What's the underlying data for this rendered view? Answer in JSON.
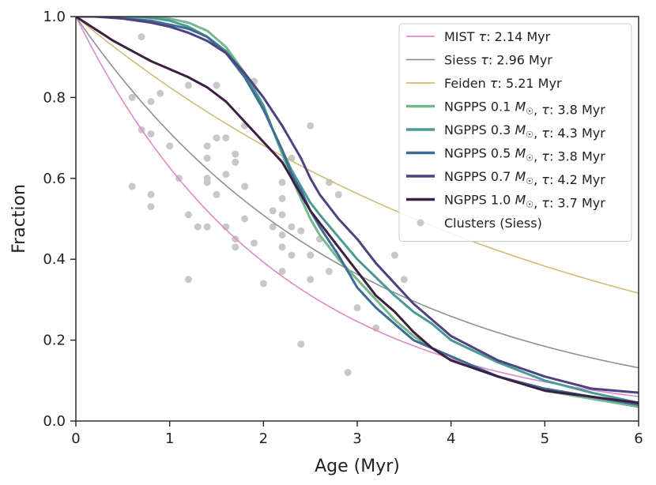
{
  "chart_data": {
    "type": "line",
    "title": "",
    "xlabel": "Age (Myr)",
    "ylabel": "Fraction",
    "xlim": [
      0,
      6
    ],
    "ylim": [
      0,
      1.0
    ],
    "xticks": [
      0,
      1,
      2,
      3,
      4,
      5,
      6
    ],
    "xtick_labels": [
      "0",
      "1",
      "2",
      "3",
      "4",
      "5",
      "6"
    ],
    "yticks": [
      0.0,
      0.2,
      0.4,
      0.6,
      0.8,
      1.0
    ],
    "ytick_labels": [
      "0.0",
      "0.2",
      "0.4",
      "0.6",
      "0.8",
      "1.0"
    ],
    "grid": false,
    "legend_position": "top-right",
    "series": [
      {
        "name": "MIST τ: 2.14 Myr",
        "kind": "exponential",
        "tau": 2.14,
        "color": "#dd8acd",
        "width": 1.6,
        "legend_parts": [
          {
            "text": "MIST "
          },
          {
            "text": "τ",
            "italic": true
          },
          {
            "text": ": 2.14 Myr"
          }
        ]
      },
      {
        "name": "Siess τ: 2.96 Myr",
        "kind": "exponential",
        "tau": 2.96,
        "color": "#909090",
        "width": 1.6,
        "legend_parts": [
          {
            "text": "Siess "
          },
          {
            "text": "τ",
            "italic": true
          },
          {
            "text": ": 2.96 Myr"
          }
        ]
      },
      {
        "name": "Feiden τ: 5.21 Myr",
        "kind": "exponential",
        "tau": 5.21,
        "color": "#d1bc76",
        "width": 1.6,
        "legend_parts": [
          {
            "text": "Feiden "
          },
          {
            "text": "τ",
            "italic": true
          },
          {
            "text": ": 5.21 Myr"
          }
        ]
      },
      {
        "name": "NGPPS 0.1 M☉, τ: 3.8 Myr",
        "kind": "simulated",
        "color": "#74b88e",
        "width": 3,
        "legend_parts": [
          {
            "text": "NGPPS 0.1 "
          },
          {
            "text": "M",
            "italic": true
          },
          {
            "text": "☉",
            "sub": true
          },
          {
            "text": ", "
          },
          {
            "text": "τ",
            "italic": true
          },
          {
            "text": ": 3.8 Myr"
          }
        ],
        "x": [
          0,
          0.5,
          0.8,
          1.0,
          1.2,
          1.4,
          1.6,
          1.8,
          2.0,
          2.1,
          2.2,
          2.3,
          2.4,
          2.5,
          2.6,
          2.8,
          3.0,
          3.2,
          3.4,
          3.6,
          3.8,
          4.0,
          4.5,
          5.0,
          5.5,
          6.0
        ],
        "y": [
          1.0,
          1.0,
          1.0,
          0.995,
          0.985,
          0.965,
          0.925,
          0.86,
          0.78,
          0.72,
          0.66,
          0.6,
          0.55,
          0.5,
          0.46,
          0.4,
          0.35,
          0.3,
          0.25,
          0.21,
          0.18,
          0.15,
          0.11,
          0.075,
          0.055,
          0.035
        ]
      },
      {
        "name": "NGPPS 0.3 M☉, τ: 4.3 Myr",
        "kind": "simulated",
        "color": "#4c9a94",
        "width": 3,
        "legend_parts": [
          {
            "text": "NGPPS 0.3 "
          },
          {
            "text": "M",
            "italic": true
          },
          {
            "text": "☉",
            "sub": true
          },
          {
            "text": ", "
          },
          {
            "text": "τ",
            "italic": true
          },
          {
            "text": ": 4.3 Myr"
          }
        ],
        "x": [
          0,
          0.5,
          0.8,
          1.0,
          1.2,
          1.4,
          1.6,
          1.8,
          2.0,
          2.1,
          2.2,
          2.3,
          2.4,
          2.5,
          2.6,
          2.8,
          3.0,
          3.2,
          3.4,
          3.6,
          3.8,
          4.0,
          4.5,
          5.0,
          5.5,
          6.0
        ],
        "y": [
          1.0,
          1.0,
          0.997,
          0.99,
          0.975,
          0.95,
          0.915,
          0.86,
          0.78,
          0.72,
          0.67,
          0.62,
          0.58,
          0.54,
          0.51,
          0.455,
          0.4,
          0.355,
          0.31,
          0.27,
          0.24,
          0.2,
          0.145,
          0.1,
          0.07,
          0.045
        ]
      },
      {
        "name": "NGPPS 0.5 M☉, τ: 3.8 Myr",
        "kind": "simulated",
        "color": "#3f6c94",
        "width": 3,
        "legend_parts": [
          {
            "text": "NGPPS 0.5 "
          },
          {
            "text": "M",
            "italic": true
          },
          {
            "text": "☉",
            "sub": true
          },
          {
            "text": ", "
          },
          {
            "text": "τ",
            "italic": true
          },
          {
            "text": ": 3.8 Myr"
          }
        ],
        "x": [
          0,
          0.3,
          0.5,
          0.8,
          1.0,
          1.2,
          1.4,
          1.6,
          1.8,
          2.0,
          2.1,
          2.2,
          2.3,
          2.4,
          2.5,
          2.6,
          2.8,
          3.0,
          3.2,
          3.4,
          3.6,
          3.8,
          4.0,
          4.5,
          5.0,
          5.5,
          6.0
        ],
        "y": [
          1.0,
          1.0,
          0.995,
          0.99,
          0.98,
          0.97,
          0.95,
          0.91,
          0.85,
          0.77,
          0.72,
          0.67,
          0.61,
          0.57,
          0.52,
          0.48,
          0.41,
          0.33,
          0.28,
          0.24,
          0.2,
          0.18,
          0.16,
          0.11,
          0.08,
          0.06,
          0.04
        ]
      },
      {
        "name": "NGPPS 0.7 M☉, τ: 4.2 Myr",
        "kind": "simulated",
        "color": "#4b4480",
        "width": 3,
        "legend_parts": [
          {
            "text": "NGPPS 0.7 "
          },
          {
            "text": "M",
            "italic": true
          },
          {
            "text": "☉",
            "sub": true
          },
          {
            "text": ", "
          },
          {
            "text": "τ",
            "italic": true
          },
          {
            "text": ": 4.2 Myr"
          }
        ],
        "x": [
          0,
          0.2,
          0.5,
          0.8,
          1.0,
          1.2,
          1.4,
          1.6,
          1.8,
          2.0,
          2.2,
          2.3,
          2.4,
          2.5,
          2.6,
          2.8,
          3.0,
          3.2,
          3.4,
          3.6,
          3.8,
          4.0,
          4.5,
          5.0,
          5.5,
          6.0
        ],
        "y": [
          1.0,
          1.0,
          0.995,
          0.985,
          0.975,
          0.96,
          0.94,
          0.91,
          0.86,
          0.8,
          0.73,
          0.69,
          0.65,
          0.6,
          0.56,
          0.5,
          0.45,
          0.39,
          0.34,
          0.29,
          0.25,
          0.21,
          0.15,
          0.11,
          0.08,
          0.07
        ]
      },
      {
        "name": "NGPPS 1.0 M☉, τ: 3.7 Myr",
        "kind": "simulated",
        "color": "#3d1f44",
        "width": 3,
        "legend_parts": [
          {
            "text": "NGPPS 1.0 "
          },
          {
            "text": "M",
            "italic": true
          },
          {
            "text": "☉",
            "sub": true
          },
          {
            "text": ", "
          },
          {
            "text": "τ",
            "italic": true
          },
          {
            "text": ": 3.7 Myr"
          }
        ],
        "x": [
          0,
          0.2,
          0.4,
          0.6,
          0.8,
          1.0,
          1.2,
          1.4,
          1.6,
          1.8,
          2.0,
          2.2,
          2.3,
          2.4,
          2.5,
          2.6,
          2.8,
          3.0,
          3.2,
          3.4,
          3.6,
          3.8,
          4.0,
          4.5,
          5.0,
          5.5,
          6.0
        ],
        "y": [
          1.0,
          0.97,
          0.94,
          0.915,
          0.89,
          0.87,
          0.85,
          0.825,
          0.79,
          0.74,
          0.69,
          0.64,
          0.6,
          0.56,
          0.52,
          0.49,
          0.43,
          0.37,
          0.31,
          0.27,
          0.22,
          0.18,
          0.15,
          0.11,
          0.075,
          0.06,
          0.045
        ]
      }
    ],
    "scatter": {
      "name": "Clusters (Siess)",
      "color": "#c8c8c8",
      "points": [
        [
          0.6,
          0.8
        ],
        [
          0.6,
          0.58
        ],
        [
          0.7,
          0.95
        ],
        [
          0.7,
          0.72
        ],
        [
          0.8,
          0.79
        ],
        [
          0.8,
          0.71
        ],
        [
          0.8,
          0.56
        ],
        [
          0.8,
          0.53
        ],
        [
          0.9,
          0.81
        ],
        [
          1.0,
          0.68
        ],
        [
          1.1,
          0.6
        ],
        [
          1.2,
          0.83
        ],
        [
          1.2,
          0.51
        ],
        [
          1.2,
          0.35
        ],
        [
          1.3,
          0.48
        ],
        [
          1.4,
          0.68
        ],
        [
          1.4,
          0.65
        ],
        [
          1.4,
          0.6
        ],
        [
          1.4,
          0.59
        ],
        [
          1.4,
          0.48
        ],
        [
          1.5,
          0.83
        ],
        [
          1.5,
          0.7
        ],
        [
          1.5,
          0.56
        ],
        [
          1.6,
          0.7
        ],
        [
          1.6,
          0.61
        ],
        [
          1.6,
          0.48
        ],
        [
          1.7,
          0.66
        ],
        [
          1.7,
          0.64
        ],
        [
          1.7,
          0.45
        ],
        [
          1.7,
          0.43
        ],
        [
          1.8,
          0.73
        ],
        [
          1.8,
          0.58
        ],
        [
          1.8,
          0.5
        ],
        [
          1.9,
          0.84
        ],
        [
          1.9,
          0.44
        ],
        [
          2.0,
          0.34
        ],
        [
          2.1,
          0.52
        ],
        [
          2.1,
          0.48
        ],
        [
          2.2,
          0.59
        ],
        [
          2.2,
          0.55
        ],
        [
          2.2,
          0.51
        ],
        [
          2.2,
          0.46
        ],
        [
          2.2,
          0.43
        ],
        [
          2.2,
          0.37
        ],
        [
          2.3,
          0.65
        ],
        [
          2.3,
          0.48
        ],
        [
          2.3,
          0.41
        ],
        [
          2.4,
          0.47
        ],
        [
          2.4,
          0.19
        ],
        [
          2.5,
          0.73
        ],
        [
          2.5,
          0.41
        ],
        [
          2.5,
          0.35
        ],
        [
          2.6,
          0.45
        ],
        [
          2.7,
          0.59
        ],
        [
          2.7,
          0.37
        ],
        [
          2.8,
          0.56
        ],
        [
          2.9,
          0.12
        ],
        [
          3.0,
          0.28
        ],
        [
          3.2,
          0.23
        ],
        [
          3.4,
          0.41
        ],
        [
          3.5,
          0.35
        ]
      ]
    }
  }
}
